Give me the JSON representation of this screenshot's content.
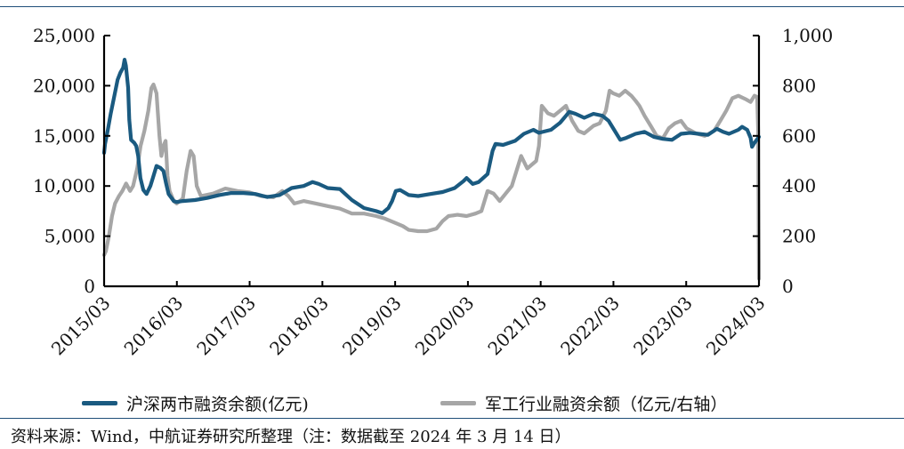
{
  "colors": {
    "series1": "#1a5a80",
    "series2": "#a6a6a6",
    "axis": "#000000",
    "rule": "#1f4e79"
  },
  "chart_data": {
    "type": "line",
    "title": "",
    "grid": false,
    "legend_position": "bottom",
    "x_ticks": [
      "2015/03",
      "2016/03",
      "2017/03",
      "2018/03",
      "2019/03",
      "2020/03",
      "2021/03",
      "2022/03",
      "2023/03",
      "2024/03"
    ],
    "y_left": {
      "ticks": [
        "0",
        "5,000",
        "10,000",
        "15,000",
        "20,000",
        "25,000"
      ],
      "range": [
        0,
        25000
      ]
    },
    "y_right": {
      "ticks": [
        "0",
        "200",
        "400",
        "600",
        "800",
        "1,000"
      ],
      "range": [
        0,
        1000
      ]
    },
    "series": [
      {
        "name": "沪深两市融资余额(亿元)",
        "axis": "left",
        "color": "#1a5a80",
        "points": [
          [
            "2015-03-01",
            13300
          ],
          [
            "2015-03-06",
            14200
          ],
          [
            "2015-03-20",
            15600
          ],
          [
            "2015-04-03",
            17200
          ],
          [
            "2015-04-24",
            19200
          ],
          [
            "2015-05-08",
            20600
          ],
          [
            "2015-05-22",
            21300
          ],
          [
            "2015-06-05",
            21800
          ],
          [
            "2015-06-12",
            22600
          ],
          [
            "2015-06-19",
            22000
          ],
          [
            "2015-06-30",
            19800
          ],
          [
            "2015-07-06",
            16600
          ],
          [
            "2015-07-15",
            14600
          ],
          [
            "2015-07-31",
            14300
          ],
          [
            "2015-08-10",
            14000
          ],
          [
            "2015-08-20",
            13000
          ],
          [
            "2015-08-31",
            10800
          ],
          [
            "2015-09-15",
            9600
          ],
          [
            "2015-10-01",
            9200
          ],
          [
            "2015-10-20",
            10000
          ],
          [
            "2015-11-05",
            11000
          ],
          [
            "2015-11-20",
            12000
          ],
          [
            "2015-12-10",
            11800
          ],
          [
            "2015-12-25",
            11500
          ],
          [
            "2016-01-08",
            10200
          ],
          [
            "2016-01-20",
            9200
          ],
          [
            "2016-02-15",
            8500
          ],
          [
            "2016-03-01",
            8400
          ],
          [
            "2016-04-01",
            8500
          ],
          [
            "2016-06-01",
            8600
          ],
          [
            "2016-08-01",
            8800
          ],
          [
            "2016-10-01",
            9100
          ],
          [
            "2016-12-01",
            9300
          ],
          [
            "2017-02-01",
            9300
          ],
          [
            "2017-04-01",
            9200
          ],
          [
            "2017-06-01",
            8900
          ],
          [
            "2017-08-01",
            9100
          ],
          [
            "2017-10-01",
            9800
          ],
          [
            "2017-12-01",
            10000
          ],
          [
            "2018-01-15",
            10400
          ],
          [
            "2018-02-15",
            10200
          ],
          [
            "2018-04-01",
            9800
          ],
          [
            "2018-06-01",
            9700
          ],
          [
            "2018-08-01",
            8600
          ],
          [
            "2018-10-01",
            7800
          ],
          [
            "2018-12-01",
            7500
          ],
          [
            "2019-01-01",
            7300
          ],
          [
            "2019-02-01",
            7800
          ],
          [
            "2019-02-20",
            8500
          ],
          [
            "2019-03-10",
            9500
          ],
          [
            "2019-04-01",
            9600
          ],
          [
            "2019-05-15",
            9100
          ],
          [
            "2019-07-01",
            9000
          ],
          [
            "2019-09-01",
            9200
          ],
          [
            "2019-11-01",
            9400
          ],
          [
            "2020-01-01",
            9800
          ],
          [
            "2020-02-15",
            10500
          ],
          [
            "2020-03-01",
            10800
          ],
          [
            "2020-04-01",
            10200
          ],
          [
            "2020-05-01",
            10400
          ],
          [
            "2020-06-15",
            11200
          ],
          [
            "2020-07-10",
            13500
          ],
          [
            "2020-07-25",
            14200
          ],
          [
            "2020-09-01",
            14100
          ],
          [
            "2020-11-01",
            14500
          ],
          [
            "2020-12-15",
            15200
          ],
          [
            "2021-02-01",
            15600
          ],
          [
            "2021-03-01",
            15300
          ],
          [
            "2021-05-01",
            15600
          ],
          [
            "2021-06-15",
            16300
          ],
          [
            "2021-07-15",
            17000
          ],
          [
            "2021-08-01",
            17400
          ],
          [
            "2021-09-01",
            17200
          ],
          [
            "2021-10-15",
            16800
          ],
          [
            "2021-12-01",
            17200
          ],
          [
            "2022-01-15",
            17000
          ],
          [
            "2022-02-15",
            16500
          ],
          [
            "2022-03-15",
            15600
          ],
          [
            "2022-04-15",
            14600
          ],
          [
            "2022-05-15",
            14800
          ],
          [
            "2022-07-01",
            15200
          ],
          [
            "2022-08-15",
            15400
          ],
          [
            "2022-10-01",
            14900
          ],
          [
            "2022-11-15",
            14700
          ],
          [
            "2023-01-01",
            14600
          ],
          [
            "2023-02-15",
            15200
          ],
          [
            "2023-04-01",
            15300
          ],
          [
            "2023-05-15",
            15200
          ],
          [
            "2023-07-01",
            15100
          ],
          [
            "2023-08-15",
            15700
          ],
          [
            "2023-09-15",
            15400
          ],
          [
            "2023-10-15",
            15200
          ],
          [
            "2023-12-01",
            15600
          ],
          [
            "2023-12-20",
            15900
          ],
          [
            "2024-01-15",
            15600
          ],
          [
            "2024-02-01",
            14800
          ],
          [
            "2024-02-08",
            13900
          ],
          [
            "2024-02-20",
            14300
          ],
          [
            "2024-03-14",
            14900
          ]
        ]
      },
      {
        "name": "军工行业融资余额（亿元/右轴）",
        "axis": "right",
        "color": "#a6a6a6",
        "points": [
          [
            "2015-03-01",
            125
          ],
          [
            "2015-03-10",
            140
          ],
          [
            "2015-03-25",
            200
          ],
          [
            "2015-04-10",
            280
          ],
          [
            "2015-04-25",
            330
          ],
          [
            "2015-05-15",
            360
          ],
          [
            "2015-06-01",
            380
          ],
          [
            "2015-06-20",
            410
          ],
          [
            "2015-07-10",
            380
          ],
          [
            "2015-07-25",
            400
          ],
          [
            "2015-08-15",
            470
          ],
          [
            "2015-09-01",
            560
          ],
          [
            "2015-09-20",
            620
          ],
          [
            "2015-10-10",
            700
          ],
          [
            "2015-10-25",
            790
          ],
          [
            "2015-11-05",
            805
          ],
          [
            "2015-11-20",
            770
          ],
          [
            "2015-12-05",
            600
          ],
          [
            "2015-12-15",
            520
          ],
          [
            "2015-12-25",
            560
          ],
          [
            "2016-01-05",
            580
          ],
          [
            "2016-01-15",
            440
          ],
          [
            "2016-01-25",
            380
          ],
          [
            "2016-02-15",
            340
          ],
          [
            "2016-03-01",
            330
          ],
          [
            "2016-04-01",
            350
          ],
          [
            "2016-04-20",
            460
          ],
          [
            "2016-05-10",
            540
          ],
          [
            "2016-05-25",
            520
          ],
          [
            "2016-06-10",
            400
          ],
          [
            "2016-07-01",
            360
          ],
          [
            "2016-09-01",
            370
          ],
          [
            "2016-11-01",
            390
          ],
          [
            "2017-01-01",
            380
          ],
          [
            "2017-03-01",
            375
          ],
          [
            "2017-05-01",
            360
          ],
          [
            "2017-07-01",
            355
          ],
          [
            "2017-08-15",
            380
          ],
          [
            "2017-09-15",
            360
          ],
          [
            "2017-10-15",
            330
          ],
          [
            "2017-12-01",
            340
          ],
          [
            "2018-02-01",
            330
          ],
          [
            "2018-04-01",
            320
          ],
          [
            "2018-06-01",
            310
          ],
          [
            "2018-08-01",
            290
          ],
          [
            "2018-10-01",
            290
          ],
          [
            "2018-12-01",
            280
          ],
          [
            "2019-01-15",
            270
          ],
          [
            "2019-03-01",
            255
          ],
          [
            "2019-04-15",
            240
          ],
          [
            "2019-05-15",
            225
          ],
          [
            "2019-07-01",
            220
          ],
          [
            "2019-08-15",
            220
          ],
          [
            "2019-10-01",
            230
          ],
          [
            "2019-11-01",
            260
          ],
          [
            "2019-12-01",
            280
          ],
          [
            "2020-01-15",
            285
          ],
          [
            "2020-03-01",
            280
          ],
          [
            "2020-04-15",
            290
          ],
          [
            "2020-05-15",
            300
          ],
          [
            "2020-06-15",
            380
          ],
          [
            "2020-07-15",
            370
          ],
          [
            "2020-08-15",
            340
          ],
          [
            "2020-10-15",
            400
          ],
          [
            "2020-12-01",
            520
          ],
          [
            "2021-01-01",
            470
          ],
          [
            "2021-02-15",
            500
          ],
          [
            "2021-03-01",
            560
          ],
          [
            "2021-03-15",
            720
          ],
          [
            "2021-04-15",
            690
          ],
          [
            "2021-05-15",
            680
          ],
          [
            "2021-06-15",
            700
          ],
          [
            "2021-07-15",
            720
          ],
          [
            "2021-08-15",
            660
          ],
          [
            "2021-09-15",
            620
          ],
          [
            "2021-10-15",
            610
          ],
          [
            "2021-12-01",
            640
          ],
          [
            "2022-01-01",
            650
          ],
          [
            "2022-02-01",
            700
          ],
          [
            "2022-02-20",
            780
          ],
          [
            "2022-03-10",
            770
          ],
          [
            "2022-04-10",
            760
          ],
          [
            "2022-05-10",
            780
          ],
          [
            "2022-06-10",
            760
          ],
          [
            "2022-07-01",
            740
          ],
          [
            "2022-07-20",
            720
          ],
          [
            "2022-08-15",
            680
          ],
          [
            "2022-09-15",
            640
          ],
          [
            "2022-10-15",
            600
          ],
          [
            "2022-11-15",
            590
          ],
          [
            "2022-12-15",
            630
          ],
          [
            "2023-01-15",
            650
          ],
          [
            "2023-02-15",
            660
          ],
          [
            "2023-03-15",
            630
          ],
          [
            "2023-05-01",
            610
          ],
          [
            "2023-06-15",
            600
          ],
          [
            "2023-08-01",
            620
          ],
          [
            "2023-09-01",
            660
          ],
          [
            "2023-10-01",
            700
          ],
          [
            "2023-11-01",
            750
          ],
          [
            "2023-12-01",
            760
          ],
          [
            "2024-01-10",
            745
          ],
          [
            "2024-02-01",
            735
          ],
          [
            "2024-02-20",
            760
          ],
          [
            "2024-03-05",
            755
          ],
          [
            "2024-03-10",
            620
          ],
          [
            "2024-03-14",
            30
          ]
        ]
      }
    ]
  },
  "legend": {
    "series1": "沪深两市融资余额(亿元)",
    "series2": "军工行业融资余额（亿元/右轴）"
  },
  "source": "资料来源：Wind，中航证券研究所整理（注：数据截至 2024 年 3 月 14 日）"
}
